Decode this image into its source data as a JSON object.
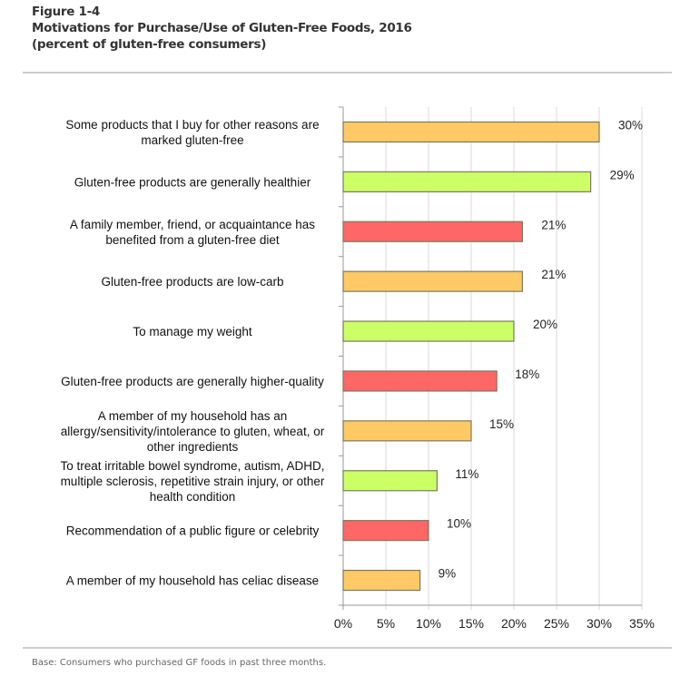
{
  "chart_data": {
    "type": "bar",
    "orientation": "horizontal",
    "figure_label": "Figure 1-4",
    "title": "Motivations for Purchase/Use of Gluten-Free Foods, 2016",
    "subtitle": "(percent of gluten-free consumers)",
    "categories": [
      [
        "Some products that I buy for other reasons are",
        "marked gluten-free"
      ],
      [
        "Gluten-free products are generally healthier"
      ],
      [
        "A family member, friend, or acquaintance has",
        "benefited from a gluten-free diet"
      ],
      [
        "Gluten-free products are low-carb"
      ],
      [
        "To manage my weight"
      ],
      [
        "Gluten-free products are generally higher-quality"
      ],
      [
        "A member of my household has an",
        "allergy/sensitivity/intolerance to gluten, wheat, or",
        "other ingredients"
      ],
      [
        "To treat irritable bowel syndrome, autism, ADHD,",
        "multiple sclerosis, repetitive strain injury, or other",
        "health condition"
      ],
      [
        "Recommendation of a public figure or celebrity"
      ],
      [
        "A member of my household has celiac disease"
      ]
    ],
    "values": [
      30,
      29,
      21,
      21,
      20,
      18,
      15,
      11,
      10,
      9
    ],
    "data_labels": [
      "30%",
      "29%",
      "21%",
      "21%",
      "20%",
      "18%",
      "15%",
      "11%",
      "10%",
      "9%"
    ],
    "colors": [
      "#FFC966",
      "#CCFF66",
      "#FF6666",
      "#FFC966",
      "#CCFF66",
      "#FF6666",
      "#FFC966",
      "#CCFF66",
      "#FF6666",
      "#FFC966"
    ],
    "xlim": [
      0,
      35
    ],
    "xticks": [
      "0%",
      "5%",
      "10%",
      "15%",
      "20%",
      "25%",
      "30%",
      "35%"
    ],
    "grid": true,
    "xlabel": "",
    "ylabel": ""
  },
  "footer": {
    "base": "Base: Consumers who purchased GF foods in past three months."
  }
}
